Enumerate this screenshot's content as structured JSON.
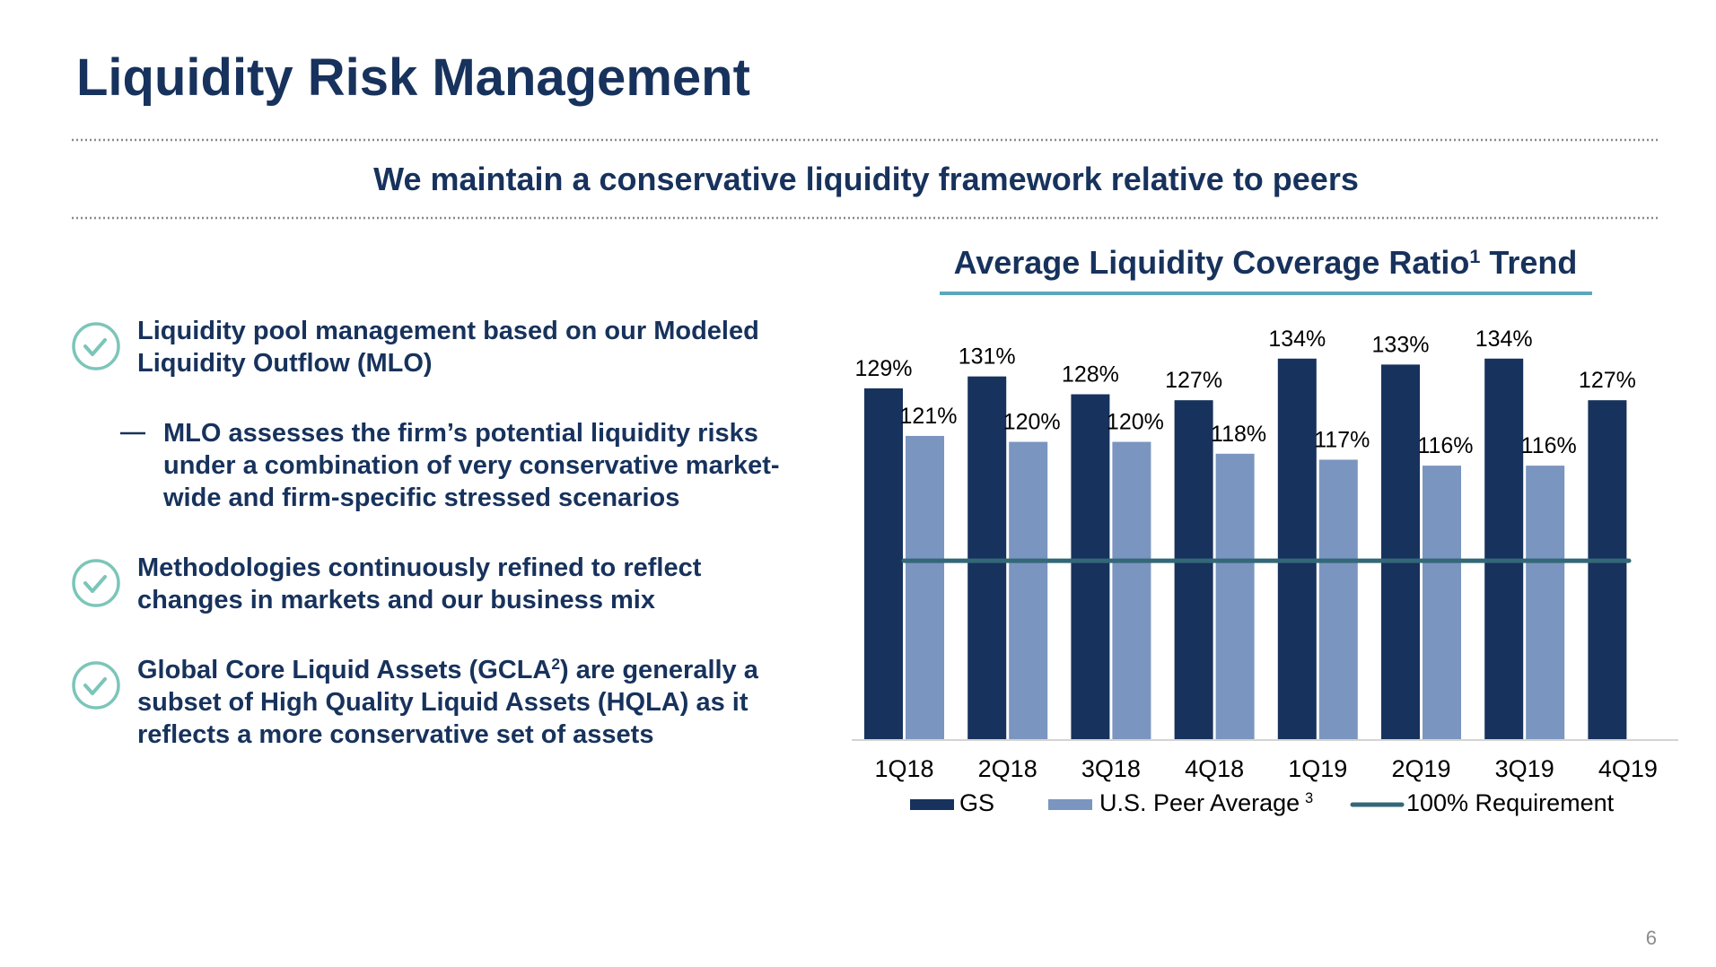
{
  "title": "Liquidity Risk Management",
  "subtitle": "We maintain a conservative liquidity framework relative to peers",
  "bullets": [
    {
      "level": 1,
      "lines": [
        [
          "Liquidity pool management based on our Modeled"
        ],
        [
          "Liquidity Outflow (MLO)"
        ]
      ]
    },
    {
      "level": 2,
      "lines": [
        [
          "MLO assesses the firm’s potential liquidity risks"
        ],
        [
          "under a combination of very conservative market-"
        ],
        [
          "wide and firm-specific stressed scenarios"
        ]
      ]
    },
    {
      "level": 1,
      "lines": [
        [
          "Methodologies continuously refined to reflect"
        ],
        [
          "changes in markets and our business mix"
        ]
      ]
    },
    {
      "level": 1,
      "lines": [
        [
          "Global Core Liquid Assets (GCLA",
          {
            "sup": "2"
          },
          ") are generally a"
        ],
        [
          "subset of High Quality Liquid Assets (HQLA) as it"
        ],
        [
          "reflects a more conservative set of assets"
        ]
      ]
    }
  ],
  "page_number": "6",
  "chart_data": {
    "type": "bar",
    "title": [
      "Average Liquidity Coverage Ratio",
      {
        "sup": "1"
      },
      " Trend"
    ],
    "categories": [
      "1Q18",
      "2Q18",
      "3Q18",
      "4Q18",
      "1Q19",
      "2Q19",
      "3Q19",
      "4Q19"
    ],
    "series": [
      {
        "name": "GS",
        "color": "#17325c",
        "values": [
          129,
          131,
          128,
          127,
          134,
          133,
          134,
          127
        ],
        "value_labels": [
          "129%",
          "131%",
          "128%",
          "127%",
          "134%",
          "133%",
          "134%",
          "127%"
        ]
      },
      {
        "name": "U.S. Peer Average",
        "note": "3",
        "color": "#7a95bf",
        "values": [
          121,
          120,
          120,
          118,
          117,
          116,
          116,
          null
        ],
        "value_labels": [
          "121%",
          "120%",
          "120%",
          "118%",
          "117%",
          "116%",
          "116%",
          null
        ]
      }
    ],
    "reference_line": {
      "name": "100% Requirement",
      "value": 100,
      "color": "#336878"
    },
    "ylim": [
      70,
      140
    ]
  }
}
